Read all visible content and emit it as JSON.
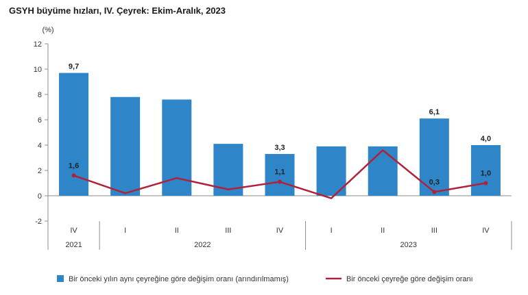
{
  "chart_data": {
    "type": "bar",
    "title": "GSYH büyüme hızları, IV. Çeyrek: Ekim-Aralık, 2023",
    "ylabel": "(%)",
    "xlabel": "",
    "ylim": [
      -2,
      12
    ],
    "yticks": [
      "-2",
      "0",
      "2",
      "4",
      "6",
      "8",
      "10",
      "12"
    ],
    "grid": false,
    "legend_position": "bottom",
    "categories": [
      "IV",
      "I",
      "II",
      "III",
      "IV",
      "I",
      "II",
      "III",
      "IV"
    ],
    "year_groups": [
      {
        "label": "2021",
        "span": 1
      },
      {
        "label": "2022",
        "span": 4
      },
      {
        "label": "2023",
        "span": 4
      }
    ],
    "series": [
      {
        "name": "Bir önceki yılın aynı çeyreğine göre değişim oranı (arındırılmamış)",
        "type": "bar",
        "color": "#2E86C8",
        "values": [
          9.7,
          7.8,
          7.6,
          4.1,
          3.3,
          3.9,
          3.9,
          6.1,
          4.0
        ],
        "labels": [
          "9,7",
          "",
          "",
          "",
          "3,3",
          "",
          "",
          "6,1",
          "4,0"
        ]
      },
      {
        "name": "Bir önceki çeyreğe göre değişim oranı",
        "type": "line",
        "color": "#B0223A",
        "values": [
          1.6,
          0.2,
          1.4,
          0.5,
          1.1,
          -0.2,
          3.6,
          0.3,
          1.0
        ],
        "labels": [
          "1,6",
          "",
          "",
          "",
          "1,1",
          "",
          "",
          "0,3",
          "1,0"
        ]
      }
    ]
  }
}
